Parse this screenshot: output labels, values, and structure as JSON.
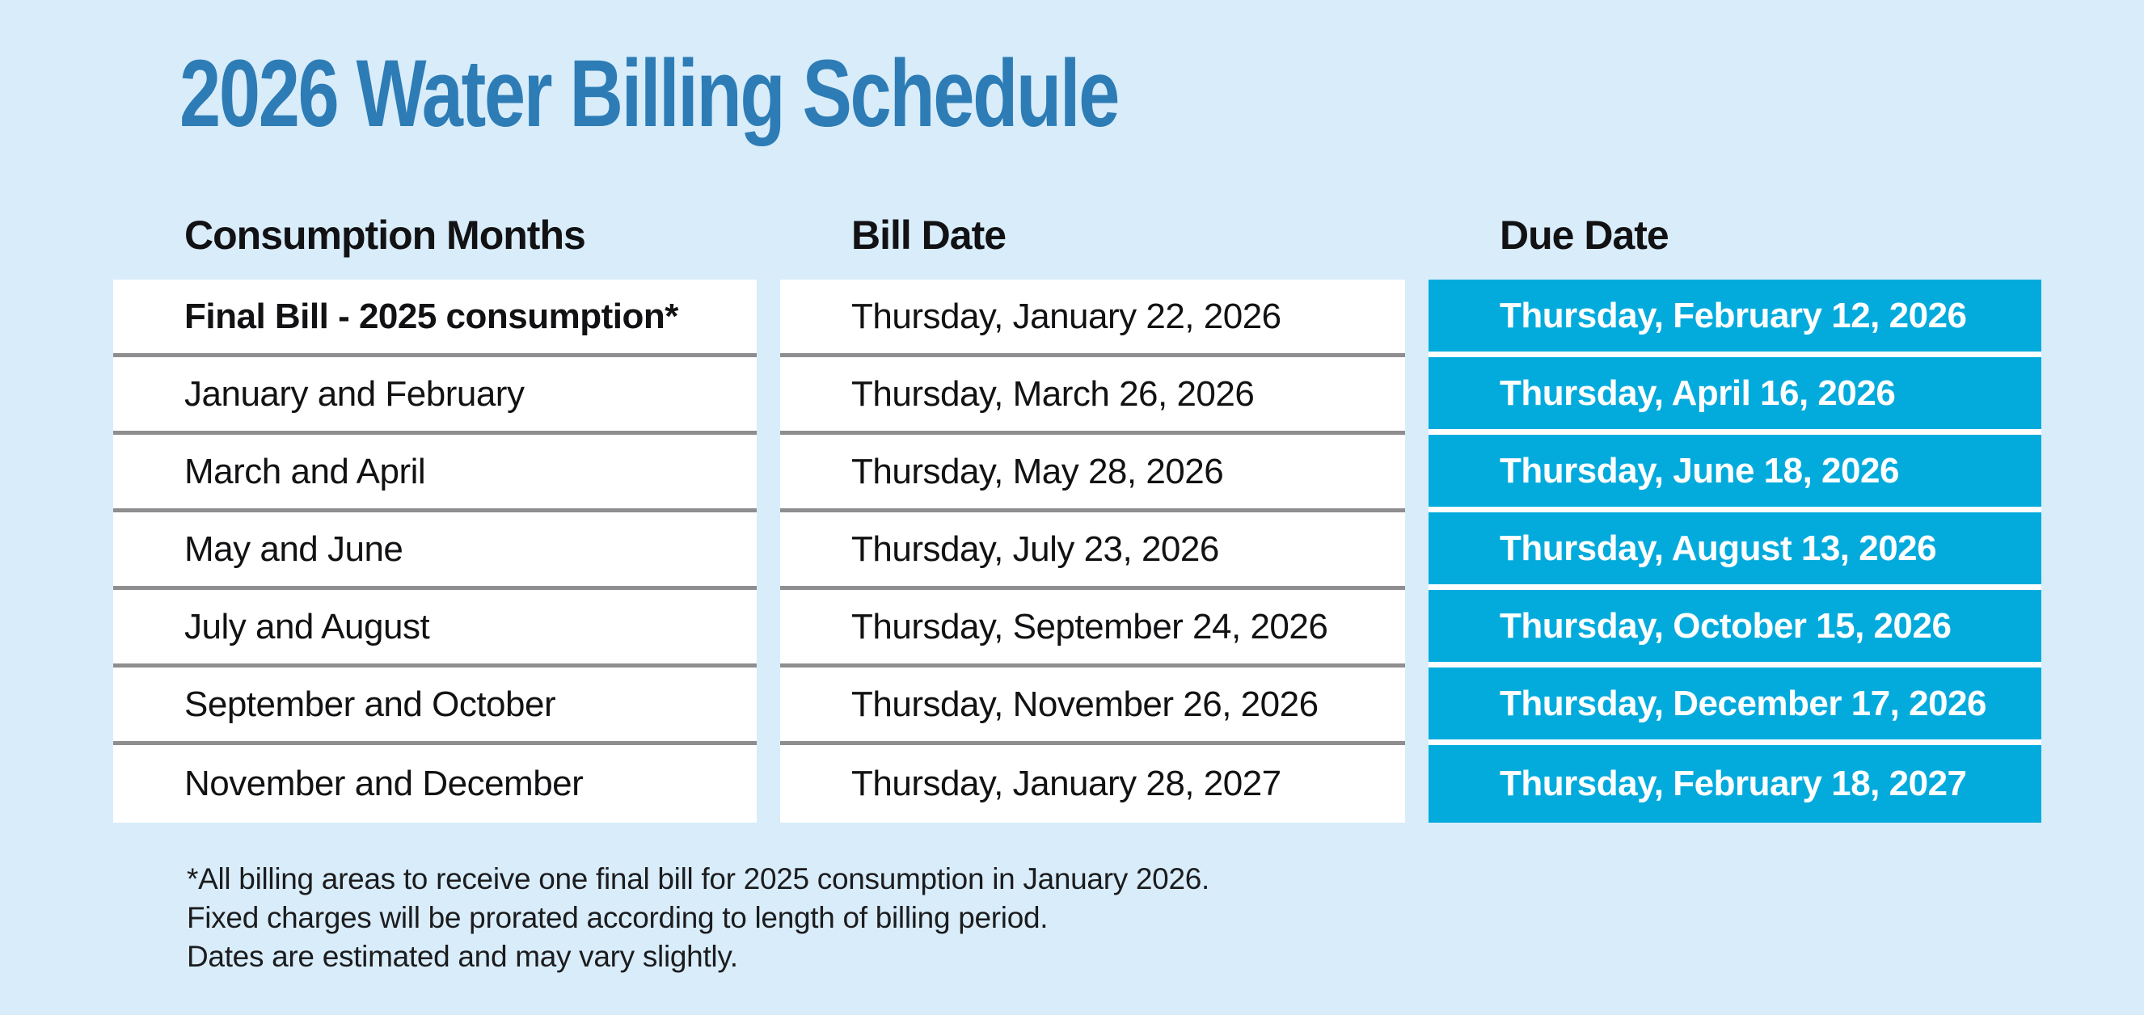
{
  "title": "2026 Water Billing Schedule",
  "colors": {
    "background": "#d8ecfa",
    "title_text": "#2d7cb5",
    "due_date_cell_bg": "#03abdd",
    "due_date_cell_text": "#ffffff",
    "row_divider": "#8e8e90",
    "cell_bg": "#ffffff",
    "body_text": "#121214"
  },
  "table": {
    "columns": {
      "consumption": "Consumption Months",
      "bill": "Bill Date",
      "due": "Due Date"
    },
    "rows": [
      {
        "consumption": "Final Bill - 2025 consumption*",
        "bill": "Thursday, January 22, 2026",
        "due": "Thursday, February 12, 2026"
      },
      {
        "consumption": "January and February",
        "bill": "Thursday, March 26, 2026",
        "due": "Thursday, April 16, 2026"
      },
      {
        "consumption": "March and April",
        "bill": "Thursday, May 28, 2026",
        "due": "Thursday, June 18, 2026"
      },
      {
        "consumption": "May and June",
        "bill": "Thursday, July 23, 2026",
        "due": "Thursday, August 13, 2026"
      },
      {
        "consumption": "July and August",
        "bill": "Thursday, September 24, 2026",
        "due": "Thursday, October 15, 2026"
      },
      {
        "consumption": "September and October",
        "bill": "Thursday, November 26, 2026",
        "due": "Thursday, December 17, 2026"
      },
      {
        "consumption": "November and December",
        "bill": "Thursday, January 28, 2027",
        "due": "Thursday, February 18, 2027"
      }
    ]
  },
  "footnotes": [
    "*All billing areas to receive one final bill for 2025 consumption in January 2026.",
    "Fixed charges will be prorated according to length of billing period.",
    "Dates are estimated and may vary slightly."
  ]
}
